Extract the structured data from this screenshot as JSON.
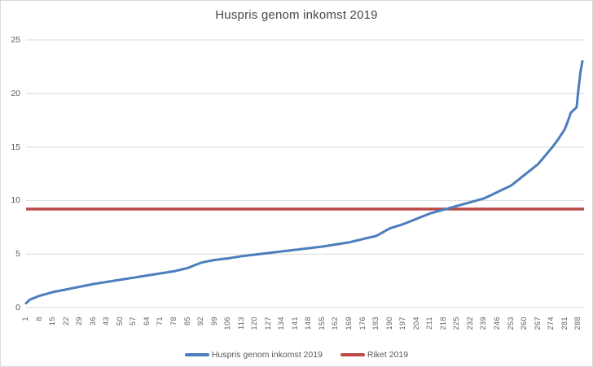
{
  "title": "Huspris genom inkomst 2019",
  "legend": [
    {
      "label": "Huspris genom inkomst 2019",
      "color": "#4A7EBC"
    },
    {
      "label": "Riket 2019",
      "color": "#BB4A47"
    }
  ],
  "colors": {
    "series_blue": "#4A7EBC",
    "series_red": "#BB4A47",
    "gridline": "#D9D9D9",
    "tick_text": "#595959",
    "title_text": "#474747"
  },
  "chart_data": {
    "type": "line",
    "title": "Huspris genom inkomst 2019",
    "xlabel": "",
    "ylabel": "",
    "x_tick_labels": [
      "1",
      "8",
      "15",
      "22",
      "29",
      "36",
      "43",
      "50",
      "57",
      "64",
      "71",
      "78",
      "85",
      "92",
      "99",
      "106",
      "113",
      "120",
      "127",
      "134",
      "141",
      "148",
      "155",
      "162",
      "169",
      "176",
      "183",
      "190",
      "197",
      "204",
      "211",
      "218",
      "225",
      "232",
      "239",
      "246",
      "253",
      "260",
      "267",
      "274",
      "281",
      "288"
    ],
    "x_tick_step": 7,
    "n_points": 290,
    "y_ticks": [
      0,
      5,
      10,
      15,
      20,
      25
    ],
    "ylim": [
      0,
      25
    ],
    "grid": "horizontal",
    "legend_position": "bottom",
    "series": [
      {
        "name": "Huspris genom inkomst 2019",
        "type": "sorted-curve",
        "color": "#4A7EBC",
        "anchors": [
          [
            1,
            0.4
          ],
          [
            3,
            0.75
          ],
          [
            8,
            1.1
          ],
          [
            15,
            1.45
          ],
          [
            22,
            1.7
          ],
          [
            29,
            1.95
          ],
          [
            36,
            2.2
          ],
          [
            43,
            2.4
          ],
          [
            50,
            2.6
          ],
          [
            57,
            2.8
          ],
          [
            64,
            3.0
          ],
          [
            71,
            3.2
          ],
          [
            78,
            3.4
          ],
          [
            85,
            3.7
          ],
          [
            92,
            4.2
          ],
          [
            99,
            4.45
          ],
          [
            106,
            4.6
          ],
          [
            113,
            4.8
          ],
          [
            120,
            4.95
          ],
          [
            127,
            5.1
          ],
          [
            134,
            5.25
          ],
          [
            141,
            5.4
          ],
          [
            148,
            5.55
          ],
          [
            155,
            5.7
          ],
          [
            162,
            5.9
          ],
          [
            169,
            6.1
          ],
          [
            176,
            6.4
          ],
          [
            183,
            6.7
          ],
          [
            190,
            7.4
          ],
          [
            197,
            7.8
          ],
          [
            204,
            8.3
          ],
          [
            211,
            8.8
          ],
          [
            218,
            9.15
          ],
          [
            225,
            9.5
          ],
          [
            232,
            9.85
          ],
          [
            239,
            10.2
          ],
          [
            246,
            10.8
          ],
          [
            253,
            11.4
          ],
          [
            260,
            12.4
          ],
          [
            267,
            13.4
          ],
          [
            274,
            14.9
          ],
          [
            277,
            15.6
          ],
          [
            281,
            16.7
          ],
          [
            284,
            18.2
          ],
          [
            287,
            18.7
          ],
          [
            288,
            20.5
          ],
          [
            289,
            22.0
          ],
          [
            290,
            23.0
          ]
        ]
      },
      {
        "name": "Riket 2019",
        "type": "constant",
        "color": "#BB4A47",
        "value": 9.2
      }
    ]
  }
}
